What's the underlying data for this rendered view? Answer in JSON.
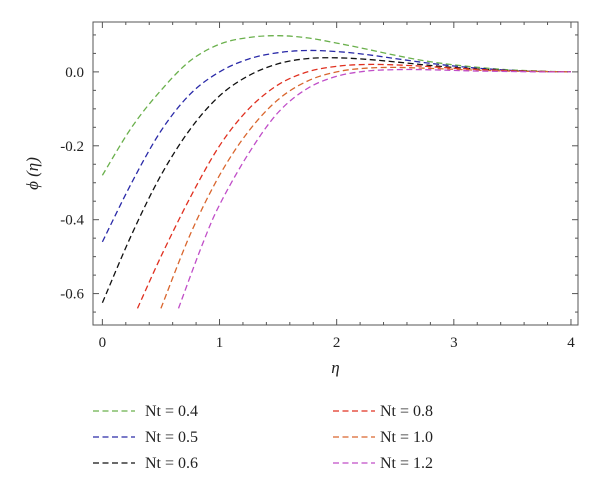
{
  "chart_data": {
    "type": "line",
    "title": "",
    "xlabel": "η",
    "ylabel": "ϕ (η)",
    "xlim": [
      -0.08,
      4.06
    ],
    "ylim": [
      -0.685,
      0.135
    ],
    "xticks": [
      0,
      1,
      2,
      3,
      4
    ],
    "xtick_labels": [
      "0",
      "1",
      "2",
      "3",
      "4"
    ],
    "yticks": [
      0.0,
      -0.2,
      -0.4,
      -0.6
    ],
    "ytick_labels": [
      "0.0",
      "-0.2",
      "-0.4",
      "-0.6"
    ],
    "grid": false,
    "legend_position": "bottom",
    "line_style": "dashed",
    "series": [
      {
        "name": "Nt = 0.4",
        "color": "#6ab04c",
        "x": [
          0,
          0.25,
          0.5,
          0.75,
          1.0,
          1.25,
          1.5,
          1.75,
          2.0,
          2.25,
          2.5,
          2.75,
          3.0,
          3.25,
          3.5,
          3.75,
          4.0
        ],
        "y": [
          -0.28,
          -0.15,
          -0.05,
          0.03,
          0.075,
          0.093,
          0.098,
          0.092,
          0.078,
          0.062,
          0.045,
          0.03,
          0.019,
          0.011,
          0.005,
          0.002,
          0.0
        ]
      },
      {
        "name": "Nt = 0.5",
        "color": "#2a2aa8",
        "x": [
          0,
          0.25,
          0.5,
          0.75,
          1.0,
          1.25,
          1.5,
          1.75,
          2.0,
          2.25,
          2.5,
          2.75,
          3.0,
          3.25,
          3.5,
          3.75,
          4.0
        ],
        "y": [
          -0.46,
          -0.3,
          -0.16,
          -0.06,
          0.0,
          0.035,
          0.052,
          0.058,
          0.055,
          0.047,
          0.036,
          0.025,
          0.016,
          0.009,
          0.004,
          0.001,
          0.0
        ]
      },
      {
        "name": "Nt = 0.6",
        "color": "#111111",
        "x": [
          0,
          0.25,
          0.5,
          0.75,
          1.0,
          1.25,
          1.5,
          1.75,
          2.0,
          2.25,
          2.5,
          2.75,
          3.0,
          3.25,
          3.5,
          3.75,
          4.0
        ],
        "y": [
          -0.625,
          -0.44,
          -0.28,
          -0.155,
          -0.065,
          -0.01,
          0.022,
          0.036,
          0.038,
          0.034,
          0.027,
          0.019,
          0.012,
          0.007,
          0.003,
          0.001,
          0.0
        ]
      },
      {
        "name": "Nt = 0.8",
        "color": "#e03020",
        "x": [
          0.3,
          0.5,
          0.75,
          1.0,
          1.25,
          1.5,
          1.75,
          2.0,
          2.25,
          2.5,
          2.75,
          3.0,
          3.25,
          3.5,
          3.75,
          4.0
        ],
        "y": [
          -0.64,
          -0.5,
          -0.34,
          -0.2,
          -0.1,
          -0.035,
          0.0,
          0.015,
          0.02,
          0.019,
          0.015,
          0.01,
          0.006,
          0.003,
          0.001,
          0.0
        ]
      },
      {
        "name": "Nt = 1.0",
        "color": "#d9662e",
        "x": [
          0.5,
          0.75,
          1.0,
          1.25,
          1.5,
          1.75,
          2.0,
          2.25,
          2.5,
          2.75,
          3.0,
          3.25,
          3.5,
          3.75,
          4.0
        ],
        "y": [
          -0.64,
          -0.44,
          -0.28,
          -0.16,
          -0.075,
          -0.025,
          0.0,
          0.01,
          0.012,
          0.01,
          0.007,
          0.004,
          0.002,
          0.001,
          0.0
        ]
      },
      {
        "name": "Nt = 1.2",
        "color": "#c04ec8",
        "x": [
          0.65,
          0.85,
          1.0,
          1.25,
          1.5,
          1.75,
          2.0,
          2.25,
          2.5,
          2.75,
          3.0,
          3.25,
          3.5,
          3.75,
          4.0
        ],
        "y": [
          -0.64,
          -0.47,
          -0.36,
          -0.22,
          -0.11,
          -0.045,
          -0.012,
          0.002,
          0.006,
          0.006,
          0.004,
          0.002,
          0.001,
          0.0,
          0.0
        ]
      }
    ]
  }
}
